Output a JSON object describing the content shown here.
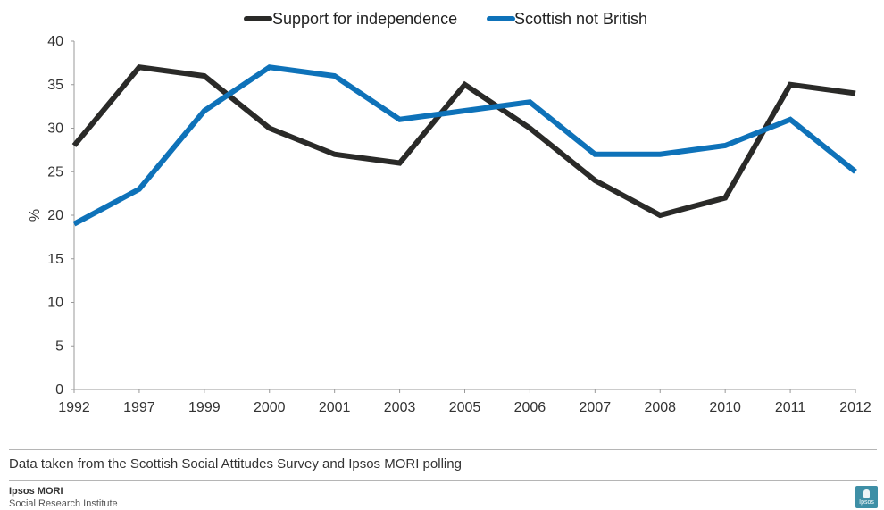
{
  "chart_data": {
    "type": "line",
    "categories": [
      "1992",
      "1997",
      "1999",
      "2000",
      "2001",
      "2003",
      "2005",
      "2006",
      "2007",
      "2008",
      "2010",
      "2011",
      "2012"
    ],
    "series": [
      {
        "name": "Support for independence",
        "values": [
          28,
          37,
          36,
          30,
          27,
          26,
          35,
          30,
          24,
          20,
          22,
          35,
          34
        ],
        "color": "#2a2a28"
      },
      {
        "name": "Scottish not British",
        "values": [
          19,
          23,
          32,
          37,
          36,
          31,
          32,
          33,
          27,
          27,
          28,
          31,
          25
        ],
        "color": "#0e72b9"
      }
    ],
    "ylabel": "%",
    "ylim": [
      0,
      40
    ],
    "yticks": [
      0,
      5,
      10,
      15,
      20,
      25,
      30,
      35,
      40
    ],
    "grid": false,
    "legend_position": "top-center"
  },
  "footer": {
    "source_note": "Data taken from the Scottish Social Attitudes Survey and Ipsos MORI polling",
    "org_name": "Ipsos MORI",
    "org_subtitle": "Social Research Institute",
    "logo_text": "Ipsos"
  },
  "colors": {
    "rule": "#b5b5b5",
    "axis": "#999999",
    "logo": "#3e8fa6"
  }
}
